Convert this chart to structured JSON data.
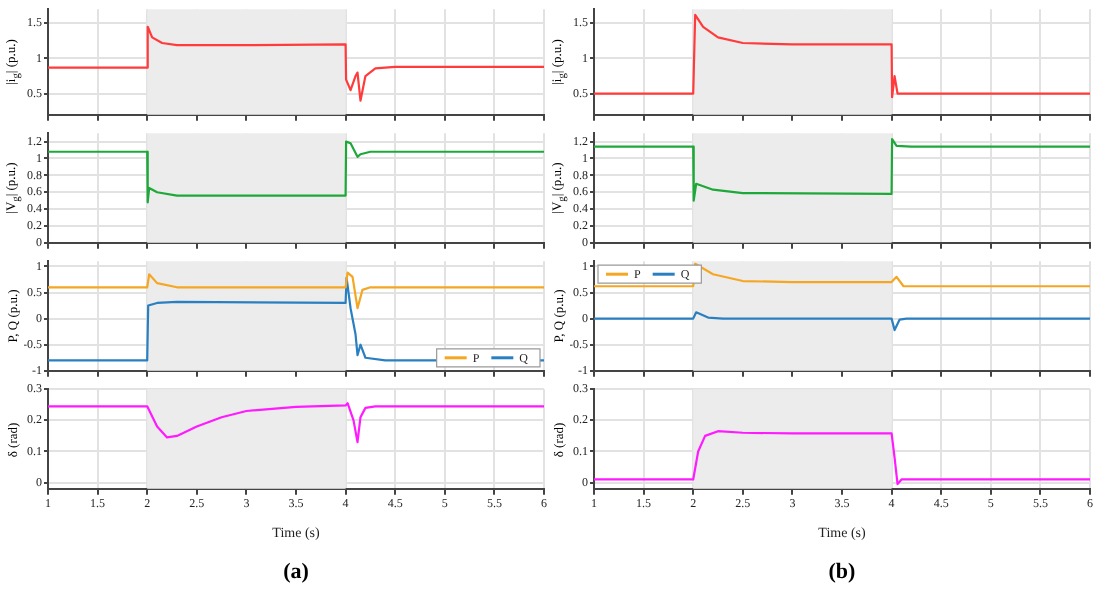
{
  "chart_data": [
    {
      "type": "line",
      "ylabel": "|i$_{g}$| (p.u.)",
      "xlim": [
        1,
        6
      ],
      "ylim": [
        0.2,
        1.7
      ],
      "xticks": [
        1,
        1.5,
        2,
        2.5,
        3,
        3.5,
        4,
        4.5,
        5,
        5.5,
        6
      ],
      "yticks": [
        0.5,
        1,
        1.5
      ],
      "grid": true,
      "tick_labels": "y",
      "bands": [
        {
          "axis": "x",
          "from": 2,
          "to": 4,
          "color": "#ececec"
        }
      ],
      "series": [
        {
          "color": "#ff3b3b",
          "x": [
            1,
            2,
            2.005,
            2.05,
            2.15,
            2.3,
            3,
            4,
            4.005,
            4.05,
            4.1,
            4.12,
            4.15,
            4.2,
            4.3,
            4.5,
            6
          ],
          "values": [
            0.87,
            0.87,
            1.45,
            1.3,
            1.22,
            1.19,
            1.19,
            1.2,
            0.7,
            0.55,
            0.75,
            0.8,
            0.4,
            0.75,
            0.86,
            0.88,
            0.88
          ]
        }
      ]
    },
    {
      "type": "line",
      "ylabel": "|V$_{g}$| (p.u.)",
      "xlim": [
        1,
        6
      ],
      "ylim": [
        0,
        1.3
      ],
      "xticks": [
        1,
        1.5,
        2,
        2.5,
        3,
        3.5,
        4,
        4.5,
        5,
        5.5,
        6
      ],
      "yticks": [
        0,
        0.2,
        0.4,
        0.6,
        0.8,
        1,
        1.2
      ],
      "grid": true,
      "tick_labels": "y",
      "bands": [
        {
          "axis": "x",
          "from": 2,
          "to": 4,
          "color": "#ececec"
        }
      ],
      "series": [
        {
          "color": "#1fa83a",
          "x": [
            1,
            2,
            2.005,
            2.02,
            2.1,
            2.3,
            4,
            4.005,
            4.05,
            4.12,
            4.15,
            4.25,
            6
          ],
          "values": [
            1.08,
            1.08,
            0.48,
            0.65,
            0.6,
            0.56,
            0.56,
            1.2,
            1.18,
            1.02,
            1.05,
            1.08,
            1.08
          ]
        }
      ]
    },
    {
      "type": "line",
      "ylabel": "P, Q (p.u.)",
      "xlim": [
        1,
        6
      ],
      "ylim": [
        -1,
        1.1
      ],
      "xticks": [
        1,
        1.5,
        2,
        2.5,
        3,
        3.5,
        4,
        4.5,
        5,
        5.5,
        6
      ],
      "yticks": [
        -1,
        -0.5,
        0,
        0.5,
        1
      ],
      "grid": true,
      "tick_labels": "y",
      "legend": "bottom right",
      "bands": [
        {
          "axis": "x",
          "from": 2,
          "to": 4,
          "color": "#ececec"
        }
      ],
      "series": [
        {
          "name": "P",
          "color": "#f5a623",
          "x": [
            1,
            2,
            2.02,
            2.1,
            2.3,
            4,
            4.02,
            4.07,
            4.12,
            4.17,
            4.25,
            6
          ],
          "values": [
            0.6,
            0.6,
            0.85,
            0.68,
            0.6,
            0.6,
            0.88,
            0.8,
            0.2,
            0.55,
            0.6,
            0.6
          ]
        },
        {
          "name": "Q",
          "color": "#2a7fc1",
          "x": [
            1,
            2,
            2.01,
            2.1,
            2.3,
            4,
            4.01,
            4.05,
            4.1,
            4.12,
            4.15,
            4.2,
            4.4,
            6
          ],
          "values": [
            -0.8,
            -0.8,
            0.25,
            0.3,
            0.32,
            0.3,
            0.78,
            0.2,
            -0.3,
            -0.7,
            -0.5,
            -0.75,
            -0.8,
            -0.8
          ]
        }
      ]
    },
    {
      "type": "line",
      "ylabel": "δ (rad)",
      "xlabel": "Time (s)",
      "annotations": [
        "(a)"
      ],
      "xlim": [
        1,
        6
      ],
      "ylim": [
        -0.02,
        0.3
      ],
      "xticks": [
        1,
        1.5,
        2,
        2.5,
        3,
        3.5,
        4,
        4.5,
        5,
        5.5,
        6
      ],
      "yticks": [
        0,
        0.1,
        0.2,
        0.3
      ],
      "grid": true,
      "bands": [
        {
          "axis": "x",
          "from": 2,
          "to": 4,
          "color": "#ececec"
        }
      ],
      "series": [
        {
          "color": "#ff1aff",
          "x": [
            1,
            2,
            2.1,
            2.2,
            2.3,
            2.5,
            2.75,
            3,
            3.5,
            4,
            4.02,
            4.08,
            4.12,
            4.15,
            4.2,
            4.3,
            6
          ],
          "values": [
            0.245,
            0.245,
            0.18,
            0.145,
            0.15,
            0.18,
            0.21,
            0.23,
            0.243,
            0.248,
            0.255,
            0.2,
            0.13,
            0.21,
            0.24,
            0.245,
            0.245
          ]
        }
      ]
    },
    {
      "type": "line",
      "ylabel": "|i$_{g}$| (p.u.)",
      "xlim": [
        1,
        6
      ],
      "ylim": [
        0.2,
        1.7
      ],
      "xticks": [
        1,
        1.5,
        2,
        2.5,
        3,
        3.5,
        4,
        4.5,
        5,
        5.5,
        6
      ],
      "yticks": [
        0.5,
        1,
        1.5
      ],
      "grid": true,
      "tick_labels": "y",
      "bands": [
        {
          "axis": "x",
          "from": 2,
          "to": 4,
          "color": "#ececec"
        }
      ],
      "series": [
        {
          "color": "#ff3b3b",
          "x": [
            1,
            2,
            2.02,
            2.1,
            2.25,
            2.5,
            3,
            4,
            4.005,
            4.03,
            4.06,
            4.2,
            6
          ],
          "values": [
            0.5,
            0.5,
            1.62,
            1.45,
            1.3,
            1.22,
            1.2,
            1.2,
            0.45,
            0.75,
            0.5,
            0.5,
            0.5
          ]
        }
      ]
    },
    {
      "type": "line",
      "ylabel": "|V$_{g}$| (p.u.)",
      "xlim": [
        1,
        6
      ],
      "ylim": [
        0,
        1.3
      ],
      "xticks": [
        1,
        1.5,
        2,
        2.5,
        3,
        3.5,
        4,
        4.5,
        5,
        5.5,
        6
      ],
      "yticks": [
        0,
        0.2,
        0.4,
        0.6,
        0.8,
        1,
        1.2
      ],
      "grid": true,
      "tick_labels": "y",
      "bands": [
        {
          "axis": "x",
          "from": 2,
          "to": 4,
          "color": "#ececec"
        }
      ],
      "series": [
        {
          "color": "#1fa83a",
          "x": [
            1,
            2,
            2.005,
            2.03,
            2.2,
            2.5,
            4,
            4.005,
            4.05,
            4.2,
            6
          ],
          "values": [
            1.14,
            1.14,
            0.5,
            0.7,
            0.63,
            0.59,
            0.58,
            1.23,
            1.15,
            1.14,
            1.14
          ]
        }
      ]
    },
    {
      "type": "line",
      "ylabel": "P, Q (p.u.)",
      "xlim": [
        1,
        6
      ],
      "ylim": [
        -1,
        1.1
      ],
      "xticks": [
        1,
        1.5,
        2,
        2.5,
        3,
        3.5,
        4,
        4.5,
        5,
        5.5,
        6
      ],
      "yticks": [
        -1,
        -0.5,
        0,
        0.5,
        1
      ],
      "grid": true,
      "tick_labels": "y",
      "legend": "top left",
      "bands": [
        {
          "axis": "x",
          "from": 2,
          "to": 4,
          "color": "#ececec"
        }
      ],
      "series": [
        {
          "name": "P",
          "color": "#f5a623",
          "x": [
            1,
            2,
            2.02,
            2.2,
            2.5,
            3,
            4,
            4.05,
            4.12,
            6
          ],
          "values": [
            0.62,
            0.62,
            1.05,
            0.85,
            0.72,
            0.7,
            0.7,
            0.8,
            0.62,
            0.62
          ]
        },
        {
          "name": "Q",
          "color": "#2a7fc1",
          "x": [
            1,
            2,
            2.03,
            2.15,
            2.3,
            4,
            4.03,
            4.08,
            4.15,
            6
          ],
          "values": [
            0,
            0,
            0.12,
            0.02,
            0,
            0,
            -0.22,
            -0.02,
            0,
            0
          ]
        }
      ]
    },
    {
      "type": "line",
      "ylabel": "δ (rad)",
      "xlabel": "Time (s)",
      "annotations": [
        "(b)"
      ],
      "xlim": [
        1,
        6
      ],
      "ylim": [
        -0.02,
        0.3
      ],
      "xticks": [
        1,
        1.5,
        2,
        2.5,
        3,
        3.5,
        4,
        4.5,
        5,
        5.5,
        6
      ],
      "yticks": [
        0,
        0.1,
        0.2,
        0.3
      ],
      "grid": true,
      "bands": [
        {
          "axis": "x",
          "from": 2,
          "to": 4,
          "color": "#ececec"
        }
      ],
      "series": [
        {
          "color": "#ff1aff",
          "x": [
            1,
            2,
            2.05,
            2.12,
            2.25,
            2.5,
            3,
            4,
            4.03,
            4.06,
            4.1,
            6
          ],
          "values": [
            0.01,
            0.01,
            0.1,
            0.15,
            0.165,
            0.16,
            0.158,
            0.158,
            0.08,
            -0.005,
            0.01,
            0.01
          ]
        }
      ]
    }
  ]
}
